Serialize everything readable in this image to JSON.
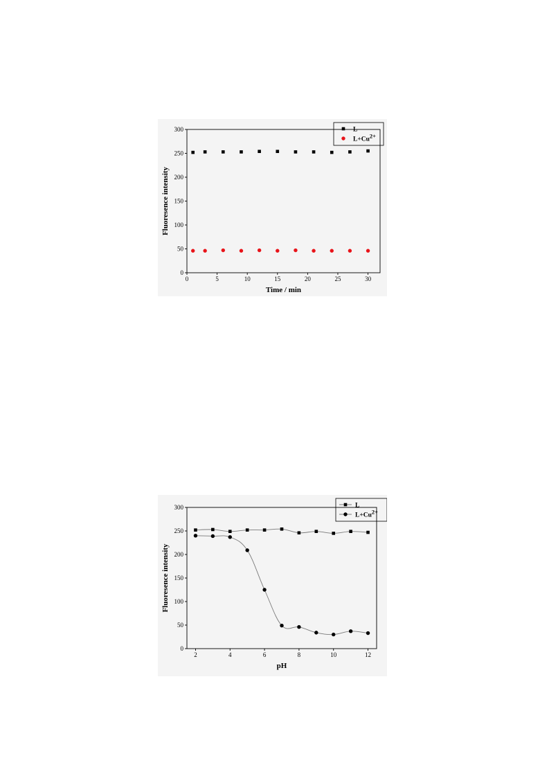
{
  "chart_data": [
    {
      "type": "scatter",
      "xlabel": "Time / min",
      "ylabel": "Fluoresence intensity",
      "xlim": [
        0,
        32
      ],
      "ylim": [
        0,
        300
      ],
      "xticks": [
        0,
        5,
        10,
        15,
        20,
        25,
        30
      ],
      "yticks": [
        0,
        50,
        100,
        150,
        200,
        250,
        300
      ],
      "grid": false,
      "legend_position": "top-right",
      "series": [
        {
          "name": "L",
          "marker": "square",
          "color": "#000000",
          "x": [
            1,
            3,
            6,
            9,
            12,
            15,
            18,
            21,
            24,
            27,
            30
          ],
          "y": [
            252,
            253,
            253,
            253,
            254,
            254,
            253,
            253,
            252,
            253,
            255
          ]
        },
        {
          "name": "L+Cu",
          "name_sup": "2+",
          "marker": "circle",
          "color": "#e8141a",
          "x": [
            1,
            3,
            6,
            9,
            12,
            15,
            18,
            21,
            24,
            27,
            30
          ],
          "y": [
            46,
            46,
            47,
            46,
            47,
            46,
            47,
            46,
            46,
            46,
            46
          ]
        }
      ]
    },
    {
      "type": "line",
      "xlabel": "pH",
      "ylabel": "Fluoresence intensity",
      "xlim": [
        1.5,
        12.5
      ],
      "ylim": [
        0,
        300
      ],
      "xticks": [
        2,
        4,
        6,
        8,
        10,
        12
      ],
      "yticks": [
        0,
        50,
        100,
        150,
        200,
        250,
        300
      ],
      "grid": false,
      "legend_position": "top-right",
      "series": [
        {
          "name": "L",
          "marker": "square",
          "color": "#000000",
          "x": [
            2,
            3,
            4,
            5,
            6,
            7,
            8,
            9,
            10,
            11,
            12
          ],
          "y": [
            252,
            253,
            249,
            252,
            252,
            254,
            246,
            249,
            245,
            249,
            247
          ]
        },
        {
          "name": "L+Cu",
          "name_sup": "2+",
          "marker": "circle",
          "color": "#000000",
          "x": [
            2,
            3,
            4,
            5,
            6,
            7,
            8,
            9,
            10,
            11,
            12
          ],
          "y": [
            240,
            239,
            237,
            209,
            125,
            49,
            46,
            34,
            30,
            37,
            33
          ]
        }
      ]
    }
  ]
}
